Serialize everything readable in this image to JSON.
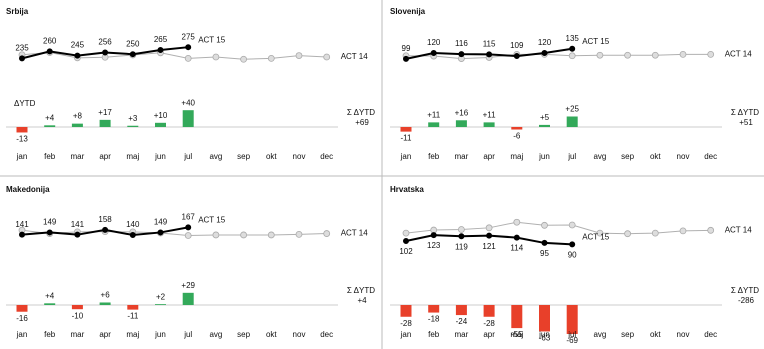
{
  "chart_data": [
    {
      "type": "variance",
      "title": "Srbija",
      "categories": [
        "jan",
        "feb",
        "mar",
        "apr",
        "maj",
        "jun",
        "jul",
        "avg",
        "sep",
        "okt",
        "nov",
        "dec"
      ],
      "series": [
        {
          "name": "ACT 15",
          "color": "#000000",
          "values": [
            235,
            260,
            245,
            256,
            250,
            265,
            275,
            null,
            null,
            null,
            null,
            null
          ]
        },
        {
          "name": "ACT 14",
          "color": "#b0b0b0",
          "values": [
            248,
            256,
            237,
            239,
            247,
            255,
            235,
            240,
            232,
            235,
            245,
            240
          ]
        }
      ],
      "delta_title": "ΔYTD",
      "deltas": [
        -13,
        4,
        8,
        17,
        3,
        10,
        40
      ],
      "delta_labels": [
        "-13",
        "+4",
        "+8",
        "+17",
        "+3",
        "+10",
        "+40"
      ],
      "total_title": "Σ ΔYTD",
      "total": 69,
      "total_label": "+69",
      "pos_color": "#33a95a",
      "neg_color": "#e8402a",
      "point_labels": "above"
    },
    {
      "type": "variance",
      "title": "Slovenija",
      "categories": [
        "jan",
        "feb",
        "mar",
        "apr",
        "maj",
        "jun",
        "jul",
        "avg",
        "sep",
        "okt",
        "nov",
        "dec"
      ],
      "series": [
        {
          "name": "ACT 15",
          "color": "#000000",
          "values": [
            99,
            120,
            116,
            115,
            109,
            120,
            135,
            null,
            null,
            null,
            null,
            null
          ]
        },
        {
          "name": "ACT 14",
          "color": "#b0b0b0",
          "values": [
            110,
            109,
            100,
            104,
            115,
            115,
            110,
            112,
            112,
            112,
            115,
            115
          ]
        }
      ],
      "deltas": [
        -11,
        11,
        16,
        11,
        -6,
        5,
        25
      ],
      "delta_labels": [
        "-11",
        "+11",
        "+16",
        "+11",
        "-6",
        "+5",
        "+25"
      ],
      "total_title": "Σ ΔYTD",
      "total": 51,
      "total_label": "+51",
      "pos_color": "#33a95a",
      "neg_color": "#e8402a",
      "point_labels": "above"
    },
    {
      "type": "variance",
      "title": "Makedonija",
      "categories": [
        "jan",
        "feb",
        "mar",
        "apr",
        "maj",
        "jun",
        "jul",
        "avg",
        "sep",
        "okt",
        "nov",
        "dec"
      ],
      "series": [
        {
          "name": "ACT 15",
          "color": "#000000",
          "values": [
            141,
            149,
            141,
            158,
            140,
            149,
            167,
            null,
            null,
            null,
            null,
            null
          ]
        },
        {
          "name": "ACT 14",
          "color": "#b0b0b0",
          "values": [
            157,
            145,
            151,
            152,
            151,
            147,
            138,
            140,
            140,
            140,
            142,
            145
          ]
        }
      ],
      "deltas": [
        -16,
        4,
        -10,
        6,
        -11,
        2,
        29
      ],
      "delta_labels": [
        "-16",
        "+4",
        "-10",
        "+6",
        "-11",
        "+2",
        "+29"
      ],
      "total_title": "Σ ΔYTD",
      "total": 4,
      "total_label": "+4",
      "pos_color": "#33a95a",
      "neg_color": "#e8402a",
      "point_labels": "above"
    },
    {
      "type": "variance",
      "title": "Hrvatska",
      "categories": [
        "jan",
        "feb",
        "mar",
        "apr",
        "maj",
        "jun",
        "jul",
        "avg",
        "sep",
        "okt",
        "nov",
        "dec"
      ],
      "series": [
        {
          "name": "ACT 15",
          "color": "#000000",
          "values": [
            102,
            123,
            119,
            121,
            114,
            95,
            90,
            null,
            null,
            null,
            null,
            null
          ]
        },
        {
          "name": "ACT 14",
          "color": "#b0b0b0",
          "values": [
            130,
            141,
            143,
            149,
            169,
            158,
            159,
            130,
            128,
            130,
            138,
            140
          ]
        }
      ],
      "deltas": [
        -28,
        -18,
        -24,
        -28,
        -55,
        -63,
        -69
      ],
      "delta_labels": [
        "-28",
        "-18",
        "-24",
        "-28",
        "-55",
        "-63",
        "-69"
      ],
      "total_title": "Σ ΔYTD",
      "total": -286,
      "total_label": "-286",
      "pos_color": "#33a95a",
      "neg_color": "#e8402a",
      "point_labels": "below"
    }
  ]
}
